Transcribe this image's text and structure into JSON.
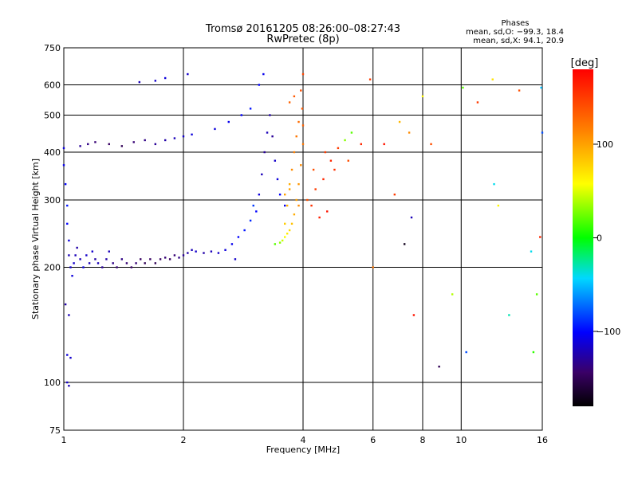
{
  "chart_data": {
    "type": "scatter",
    "title": "Tromsø 20161205 08:26:00–08:27:43",
    "subtitle": "RwPretec (8p)",
    "xlabel": "Frequency [MHz]",
    "ylabel": "Stationary phase Virtual Height [km]",
    "x_scale": "log",
    "y_scale": "log",
    "xlim": [
      1,
      16
    ],
    "ylim": [
      75,
      750
    ],
    "x_ticks": [
      1,
      2,
      4,
      6,
      8,
      10,
      16
    ],
    "x_tick_labels": [
      "1",
      "2",
      "4",
      "6",
      "8",
      "10",
      "16"
    ],
    "y_ticks": [
      75,
      100,
      200,
      300,
      400,
      500,
      600,
      750
    ],
    "y_tick_labels": [
      "75",
      "100",
      "200",
      "300",
      "400",
      "500",
      "600",
      "750"
    ],
    "grid": true,
    "colorbar": {
      "label": "[deg]",
      "range": [
        -180,
        180
      ],
      "ticks": [
        100,
        0,
        -100
      ],
      "tick_labels": [
        "100",
        "0",
        "−100"
      ]
    },
    "stats": {
      "heading": "Phases",
      "line1": "mean, sd,O: −99.3, 18.4",
      "line2": "mean, sd,X:  94.1, 20.9"
    },
    "series": [
      {
        "comment_free_note": "",
        "points": [
          [
            1.0,
            410,
            -110
          ],
          [
            1.0,
            370,
            -105
          ],
          [
            1.01,
            330,
            -100
          ],
          [
            1.02,
            290,
            -95
          ],
          [
            1.02,
            260,
            -100
          ],
          [
            1.03,
            235,
            -110
          ],
          [
            1.03,
            215,
            -120
          ],
          [
            1.04,
            200,
            -115
          ],
          [
            1.05,
            190,
            -110
          ],
          [
            1.06,
            205,
            -115
          ],
          [
            1.07,
            215,
            -120
          ],
          [
            1.08,
            225,
            -125
          ],
          [
            1.1,
            210,
            -120
          ],
          [
            1.12,
            200,
            -110
          ],
          [
            1.14,
            215,
            -115
          ],
          [
            1.16,
            205,
            -120
          ],
          [
            1.18,
            220,
            -115
          ],
          [
            1.2,
            210,
            -125
          ],
          [
            1.22,
            205,
            -120
          ],
          [
            1.25,
            200,
            -130
          ],
          [
            1.28,
            210,
            -125
          ],
          [
            1.3,
            220,
            -120
          ],
          [
            1.33,
            205,
            -135
          ],
          [
            1.36,
            200,
            -140
          ],
          [
            1.4,
            210,
            -135
          ],
          [
            1.44,
            205,
            -140
          ],
          [
            1.48,
            200,
            -145
          ],
          [
            1.52,
            205,
            -140
          ],
          [
            1.56,
            210,
            -145
          ],
          [
            1.6,
            205,
            -150
          ],
          [
            1.65,
            210,
            -145
          ],
          [
            1.7,
            205,
            -150
          ],
          [
            1.75,
            210,
            -145
          ],
          [
            1.8,
            212,
            -140
          ],
          [
            1.85,
            210,
            -145
          ],
          [
            1.9,
            215,
            -140
          ],
          [
            1.95,
            212,
            -135
          ],
          [
            2.0,
            215,
            -130
          ],
          [
            2.05,
            218,
            -125
          ],
          [
            2.1,
            222,
            -120
          ],
          [
            2.15,
            220,
            -115
          ],
          [
            2.25,
            218,
            -125
          ],
          [
            2.35,
            220,
            -120
          ],
          [
            2.45,
            218,
            -115
          ],
          [
            2.55,
            222,
            -110
          ],
          [
            2.65,
            230,
            -105
          ],
          [
            2.75,
            240,
            -100
          ],
          [
            2.85,
            250,
            -95
          ],
          [
            2.95,
            265,
            -90
          ],
          [
            3.05,
            280,
            -100
          ],
          [
            3.1,
            310,
            -110
          ],
          [
            3.15,
            350,
            -120
          ],
          [
            3.2,
            400,
            -130
          ],
          [
            3.25,
            450,
            -120
          ],
          [
            3.3,
            500,
            -125
          ],
          [
            3.35,
            440,
            -130
          ],
          [
            3.4,
            380,
            -115
          ],
          [
            3.45,
            340,
            -110
          ],
          [
            3.5,
            310,
            -100
          ],
          [
            3.6,
            290,
            -105
          ],
          [
            1.02,
            100,
            -115
          ],
          [
            1.03,
            98,
            -120
          ],
          [
            1.02,
            118,
            -110
          ],
          [
            1.04,
            116,
            -115
          ],
          [
            1.01,
            160,
            -125
          ],
          [
            1.03,
            150,
            -120
          ],
          [
            1.1,
            415,
            -130
          ],
          [
            1.15,
            420,
            -135
          ],
          [
            1.2,
            425,
            -140
          ],
          [
            1.3,
            420,
            -145
          ],
          [
            1.4,
            415,
            -150
          ],
          [
            1.5,
            425,
            -140
          ],
          [
            1.6,
            430,
            -135
          ],
          [
            1.7,
            420,
            -130
          ],
          [
            1.8,
            430,
            -125
          ],
          [
            1.9,
            435,
            -120
          ],
          [
            2.0,
            440,
            -115
          ],
          [
            2.1,
            445,
            -110
          ],
          [
            1.55,
            610,
            -120
          ],
          [
            1.7,
            615,
            -115
          ],
          [
            1.8,
            625,
            -110
          ],
          [
            2.05,
            640,
            -115
          ],
          [
            2.4,
            460,
            -110
          ],
          [
            2.6,
            480,
            -105
          ],
          [
            2.8,
            500,
            -100
          ],
          [
            2.95,
            520,
            -95
          ],
          [
            3.1,
            600,
            -100
          ],
          [
            3.18,
            640,
            -105
          ],
          [
            2.7,
            210,
            -115
          ],
          [
            3.0,
            290,
            -85
          ]
        ]
      },
      {
        "comment_free_note": "",
        "points": [
          [
            3.4,
            230,
            20
          ],
          [
            3.5,
            232,
            30
          ],
          [
            3.55,
            235,
            45
          ],
          [
            3.6,
            240,
            55
          ],
          [
            3.65,
            245,
            65
          ],
          [
            3.7,
            250,
            75
          ],
          [
            3.75,
            260,
            85
          ],
          [
            3.8,
            275,
            95
          ],
          [
            3.85,
            300,
            100
          ],
          [
            3.9,
            330,
            105
          ],
          [
            3.95,
            370,
            110
          ],
          [
            4.0,
            420,
            120
          ],
          [
            4.0,
            470,
            130
          ],
          [
            3.98,
            520,
            135
          ],
          [
            3.95,
            580,
            140
          ],
          [
            3.6,
            260,
            80
          ],
          [
            3.65,
            290,
            90
          ],
          [
            3.7,
            320,
            100
          ],
          [
            3.75,
            360,
            110
          ],
          [
            3.8,
            400,
            115
          ],
          [
            3.85,
            440,
            120
          ],
          [
            3.9,
            480,
            125
          ],
          [
            3.7,
            540,
            130
          ],
          [
            3.8,
            560,
            135
          ],
          [
            4.0,
            640,
            145
          ],
          [
            4.1,
            300,
            140
          ],
          [
            4.3,
            320,
            150
          ],
          [
            4.5,
            340,
            160
          ],
          [
            4.7,
            380,
            160
          ],
          [
            4.9,
            410,
            150
          ],
          [
            5.1,
            430,
            30
          ],
          [
            5.3,
            450,
            20
          ],
          [
            5.6,
            420,
            160
          ],
          [
            5.9,
            620,
            150
          ],
          [
            6.0,
            200,
            120
          ],
          [
            6.4,
            420,
            170
          ],
          [
            6.8,
            310,
            150
          ],
          [
            7.0,
            480,
            90
          ],
          [
            7.2,
            230,
            -170
          ],
          [
            7.4,
            450,
            110
          ],
          [
            7.5,
            270,
            -120
          ],
          [
            7.6,
            150,
            170
          ],
          [
            8.0,
            560,
            60
          ],
          [
            8.4,
            420,
            140
          ],
          [
            8.8,
            110,
            -150
          ],
          [
            9.5,
            170,
            40
          ],
          [
            10.1,
            590,
            20
          ],
          [
            10.3,
            120,
            -80
          ],
          [
            11.0,
            540,
            150
          ],
          [
            12.0,
            620,
            70
          ],
          [
            12.1,
            330,
            -40
          ],
          [
            12.4,
            290,
            60
          ],
          [
            13.2,
            150,
            -30
          ],
          [
            14.0,
            580,
            140
          ],
          [
            15.0,
            220,
            -40
          ],
          [
            15.2,
            120,
            10
          ],
          [
            15.5,
            170,
            20
          ],
          [
            15.8,
            240,
            160
          ],
          [
            16.0,
            450,
            -80
          ],
          [
            15.9,
            590,
            -50
          ],
          [
            4.6,
            280,
            170
          ],
          [
            4.2,
            290,
            155
          ],
          [
            4.4,
            270,
            165
          ],
          [
            3.9,
            290,
            110
          ],
          [
            3.6,
            310,
            100
          ],
          [
            3.7,
            330,
            95
          ],
          [
            4.25,
            360,
            140
          ],
          [
            4.55,
            400,
            150
          ],
          [
            4.8,
            360,
            155
          ],
          [
            5.2,
            380,
            140
          ]
        ]
      }
    ]
  }
}
